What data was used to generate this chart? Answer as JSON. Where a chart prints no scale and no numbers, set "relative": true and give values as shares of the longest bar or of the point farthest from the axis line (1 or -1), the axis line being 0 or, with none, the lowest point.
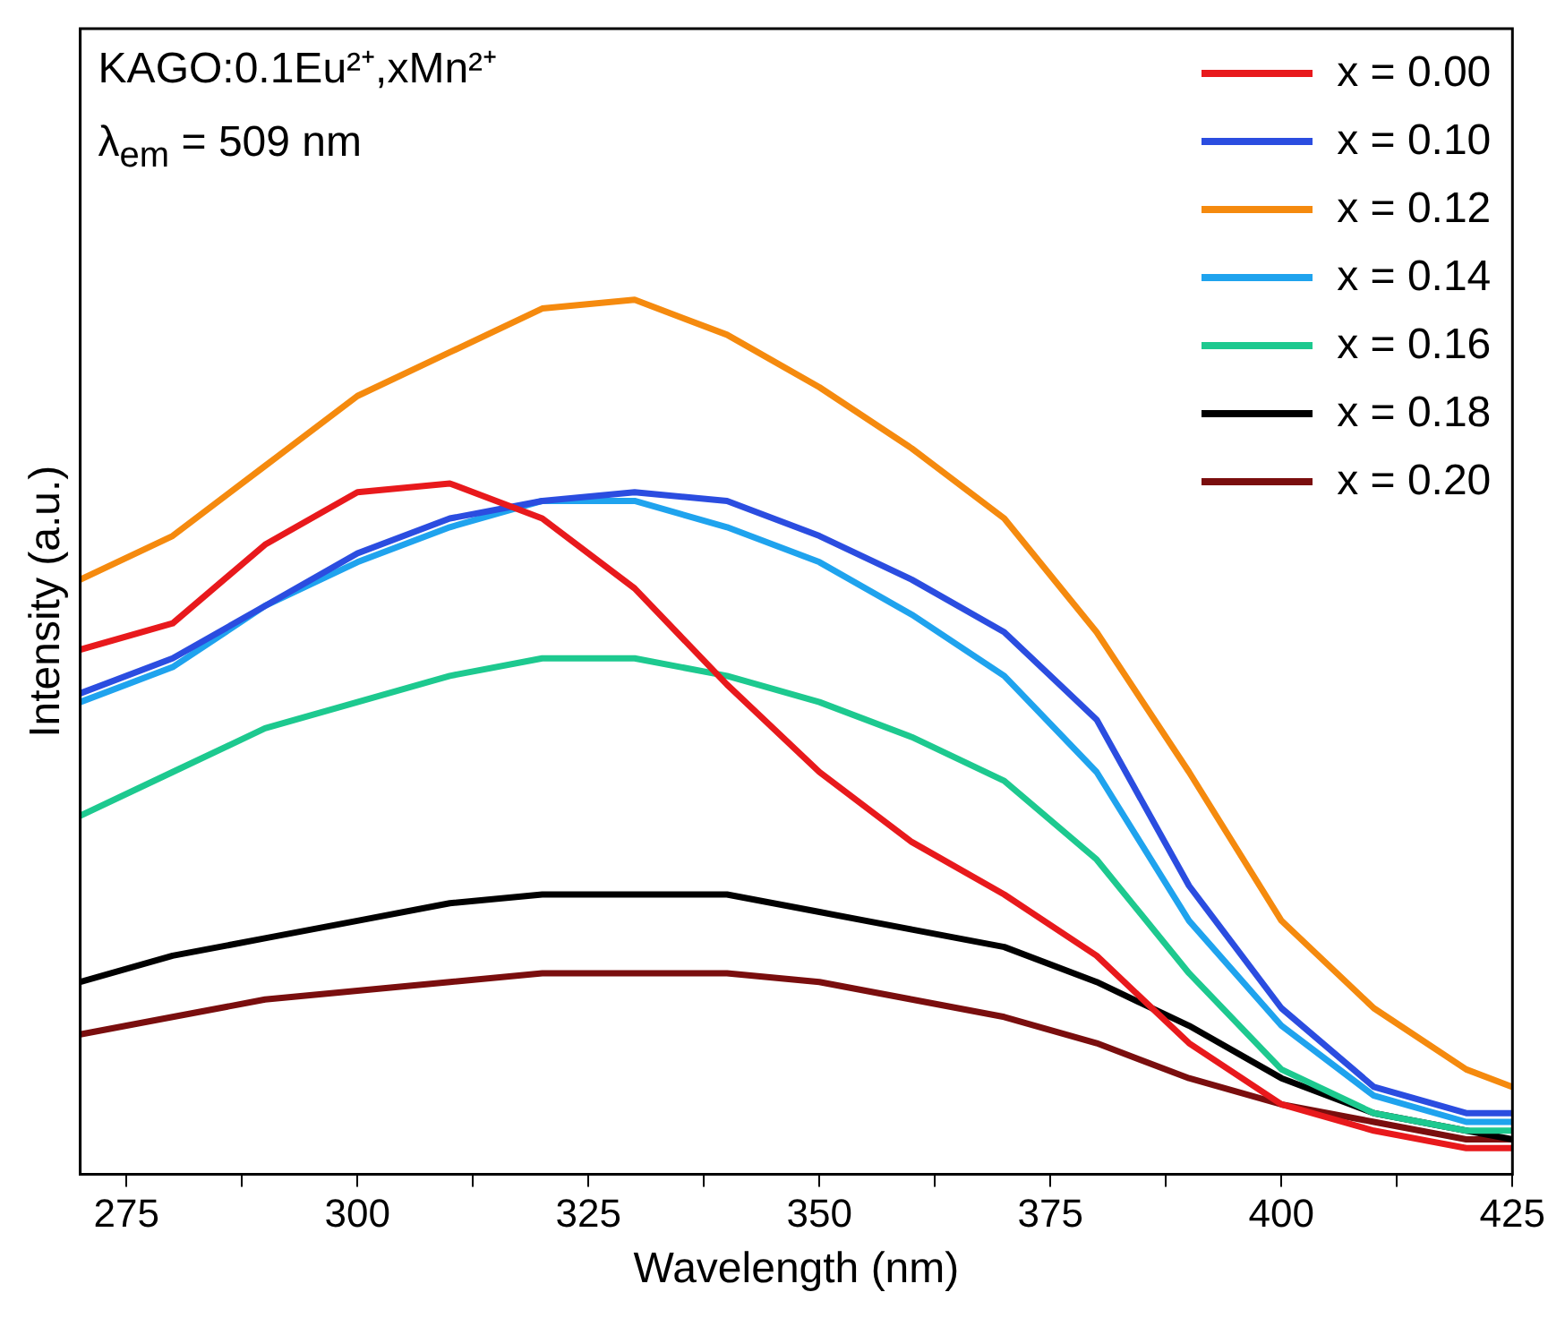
{
  "chart_data": {
    "type": "line",
    "xlabel": "Wavelength (nm)",
    "ylabel": "Intensity (a.u.)",
    "relative": true,
    "annotations": [
      "KAGO:0.1Eu²⁺,xMn²⁺",
      "λ$_{em}$ = 509 nm"
    ],
    "x": [
      270,
      280,
      290,
      300,
      310,
      320,
      330,
      340,
      350,
      360,
      370,
      380,
      390,
      400,
      410,
      420,
      425
    ],
    "xlim": [
      270,
      425
    ],
    "xticks": [
      {
        "value": 275,
        "label": "275"
      },
      {
        "value": 287.5,
        "label": null
      },
      {
        "value": 300,
        "label": "300"
      },
      {
        "value": 312.5,
        "label": null
      },
      {
        "value": 325,
        "label": "325"
      },
      {
        "value": 337.5,
        "label": null
      },
      {
        "value": 350,
        "label": "350"
      },
      {
        "value": 362.5,
        "label": null
      },
      {
        "value": 375,
        "label": "375"
      },
      {
        "value": 387.5,
        "label": null
      },
      {
        "value": 400,
        "label": "400"
      },
      {
        "value": 412.5,
        "label": null
      },
      {
        "value": 425,
        "label": "425"
      }
    ],
    "grid": false,
    "legend": "top right",
    "marker": "none",
    "line_style": "solid",
    "series": [
      {
        "name": "x = 0.00",
        "color": "#e8191c",
        "values": [
          0.6,
          0.63,
          0.72,
          0.78,
          0.79,
          0.75,
          0.67,
          0.56,
          0.46,
          0.38,
          0.32,
          0.25,
          0.15,
          0.08,
          0.05,
          0.03,
          0.03
        ]
      },
      {
        "name": "x = 0.10",
        "color": "#2b4de0",
        "values": [
          0.55,
          0.59,
          0.65,
          0.71,
          0.75,
          0.77,
          0.78,
          0.77,
          0.73,
          0.68,
          0.62,
          0.52,
          0.33,
          0.19,
          0.1,
          0.07,
          0.07
        ]
      },
      {
        "name": "x = 0.12",
        "color": "#f58a0e",
        "values": [
          0.68,
          0.73,
          0.81,
          0.89,
          0.94,
          0.99,
          1.0,
          0.96,
          0.9,
          0.83,
          0.75,
          0.62,
          0.46,
          0.29,
          0.19,
          0.12,
          0.1
        ]
      },
      {
        "name": "x = 0.14",
        "color": "#1fa3ee",
        "values": [
          0.54,
          0.58,
          0.65,
          0.7,
          0.74,
          0.77,
          0.77,
          0.74,
          0.7,
          0.64,
          0.57,
          0.46,
          0.29,
          0.17,
          0.09,
          0.06,
          0.06
        ]
      },
      {
        "name": "x = 0.16",
        "color": "#1dc98f",
        "values": [
          0.41,
          0.46,
          0.51,
          0.54,
          0.57,
          0.59,
          0.59,
          0.57,
          0.54,
          0.5,
          0.45,
          0.36,
          0.23,
          0.12,
          0.07,
          0.05,
          0.05
        ]
      },
      {
        "name": "x = 0.18",
        "color": "#000000",
        "values": [
          0.22,
          0.25,
          0.27,
          0.29,
          0.31,
          0.32,
          0.32,
          0.32,
          0.3,
          0.28,
          0.26,
          0.22,
          0.17,
          0.11,
          0.07,
          0.05,
          0.04
        ]
      },
      {
        "name": "x = 0.20",
        "color": "#7a0e0e",
        "values": [
          0.16,
          0.18,
          0.2,
          0.21,
          0.22,
          0.23,
          0.23,
          0.23,
          0.22,
          0.2,
          0.18,
          0.15,
          0.11,
          0.08,
          0.06,
          0.04,
          0.04
        ]
      }
    ]
  }
}
